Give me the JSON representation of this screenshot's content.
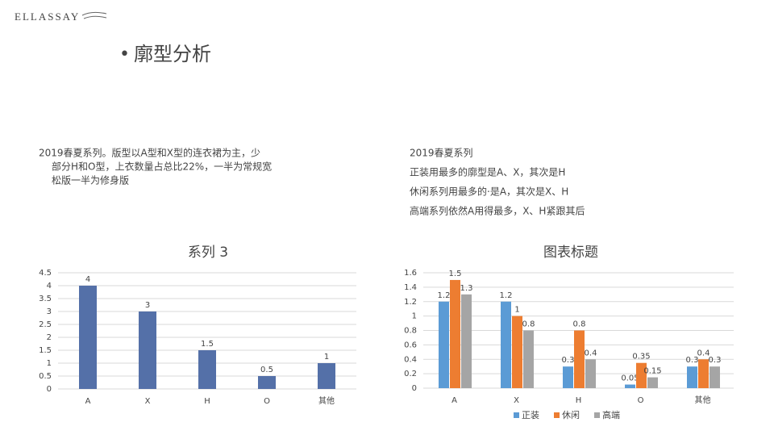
{
  "logo": "ELLASSAY",
  "heading": "廓型分析",
  "left_text": [
    "2019春夏系列。版型以A型和X型的连衣裙为主，少",
    "部分H和O型，上衣数量占总比22%，一半为常规宽",
    "松版一半为修身版"
  ],
  "right_text": [
    "2019春夏系列",
    "正装用最多的廓型是A、X，其次是H",
    "休闲系列用最多的·是A，其次是X、H",
    "高端系列依然A用得最多，X、H紧跟其后"
  ],
  "chart_data": [
    {
      "type": "bar",
      "title": "系列 3",
      "categories": [
        "A",
        "X",
        "H",
        "O",
        "其他"
      ],
      "values": [
        4,
        3,
        1.5,
        0.5,
        1
      ],
      "color": "#5470a8",
      "ylim": [
        0,
        4.5
      ],
      "yticks": [
        0,
        0.5,
        1,
        1.5,
        2,
        2.5,
        3,
        3.5,
        4,
        4.5
      ],
      "grid": true
    },
    {
      "type": "grouped-bar",
      "title": "图表标题",
      "categories": [
        "A",
        "X",
        "H",
        "O",
        "其他"
      ],
      "series": [
        {
          "name": "正装",
          "color": "#5b9bd5",
          "values": [
            1.2,
            1.2,
            0.3,
            0.05,
            0.3
          ]
        },
        {
          "name": "休闲",
          "color": "#ed7d31",
          "values": [
            1.5,
            1,
            0.8,
            0.35,
            0.4
          ]
        },
        {
          "name": "高端",
          "color": "#a5a5a5",
          "values": [
            1.3,
            0.8,
            0.4,
            0.15,
            0.3
          ]
        }
      ],
      "ylim": [
        0,
        1.6
      ],
      "yticks": [
        0,
        0.2,
        0.4,
        0.6,
        0.8,
        1,
        1.2,
        1.4,
        1.6
      ],
      "grid": true,
      "legend": "bottom"
    }
  ]
}
